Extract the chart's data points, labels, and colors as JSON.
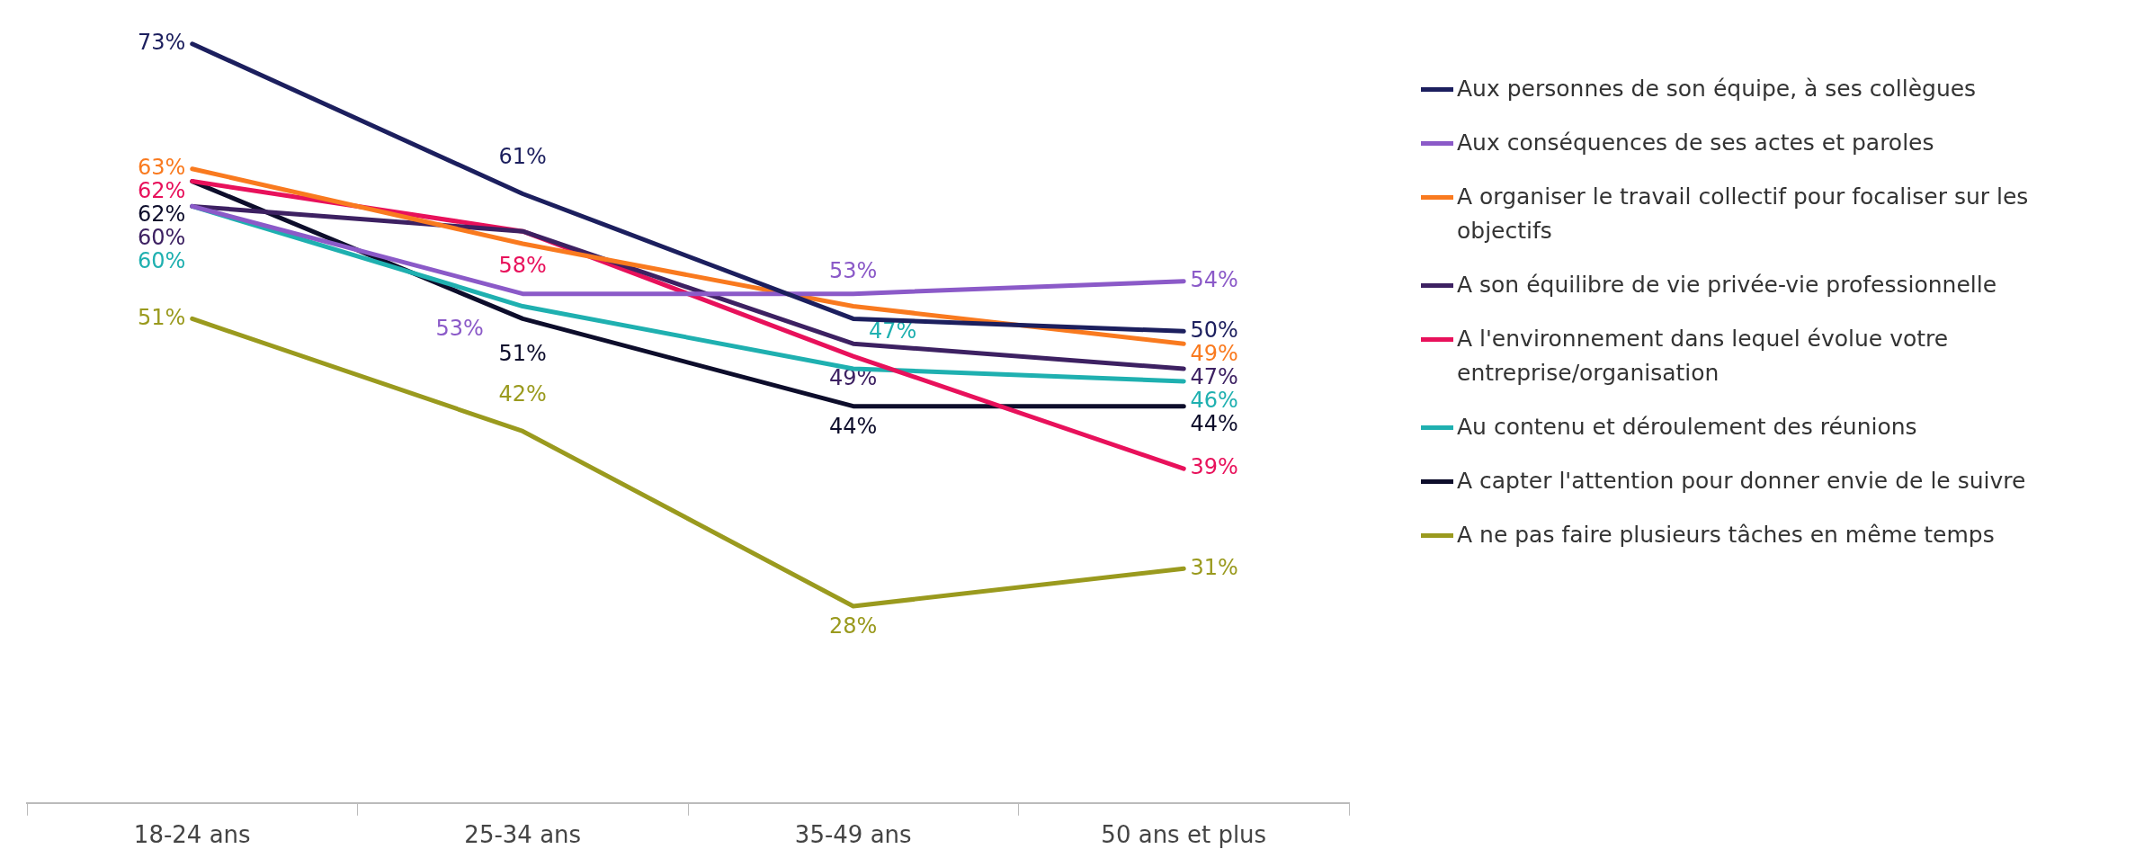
{
  "chart_data": {
    "type": "line",
    "categories": [
      "18-24 ans",
      "25-34 ans",
      "35-49 ans",
      "50 ans et plus"
    ],
    "legend": "right",
    "grid": false,
    "marker": "none",
    "line_style": "solid",
    "tick_labels": "x",
    "series": [
      {
        "name": "Aux personnes de son équipe, à ses collègues",
        "color": "#1c1f5e",
        "values": [
          73,
          61,
          51,
          50
        ],
        "value_labels": [
          "73%",
          "61%",
          null,
          "50%"
        ]
      },
      {
        "name": "Aux conséquences de ses actes et paroles",
        "color": "#8b5ac8",
        "values": [
          60,
          53,
          53,
          54
        ],
        "value_labels": [
          null,
          "53%",
          "53%",
          "54%"
        ]
      },
      {
        "name": "A organiser le travail collectif pour focaliser sur les objectifs",
        "color": "#f97a1f",
        "values": [
          63,
          57,
          52,
          49
        ],
        "value_labels": [
          "63%",
          null,
          null,
          "49%"
        ]
      },
      {
        "name": "A son équilibre de vie privée-vie professionnelle",
        "color": "#3d2162",
        "values": [
          60,
          58,
          49,
          47
        ],
        "value_labels": [
          "60%",
          null,
          "49%",
          "47%"
        ]
      },
      {
        "name": "A l'environnement dans lequel évolue votre entreprise/organisation",
        "color": "#e8115b",
        "values": [
          62,
          58,
          48,
          39
        ],
        "value_labels": [
          "62%",
          "58%",
          null,
          "39%"
        ]
      },
      {
        "name": "Au contenu et déroulement des réunions",
        "color": "#1fb0b0",
        "values": [
          60,
          52,
          47,
          46
        ],
        "value_labels": [
          "60%",
          null,
          "47%",
          "46%"
        ]
      },
      {
        "name": "A capter l'attention pour donner envie de le suivre",
        "color": "#0d0d2b",
        "values": [
          62,
          51,
          44,
          44
        ],
        "value_labels": [
          "62%",
          "51%",
          "44%",
          "44%"
        ]
      },
      {
        "name": "A ne pas faire plusieurs tâches en même temps",
        "color": "#9a9a1e",
        "values": [
          51,
          42,
          28,
          31
        ],
        "value_labels": [
          "51%",
          "42%",
          "28%",
          "31%"
        ]
      }
    ]
  }
}
